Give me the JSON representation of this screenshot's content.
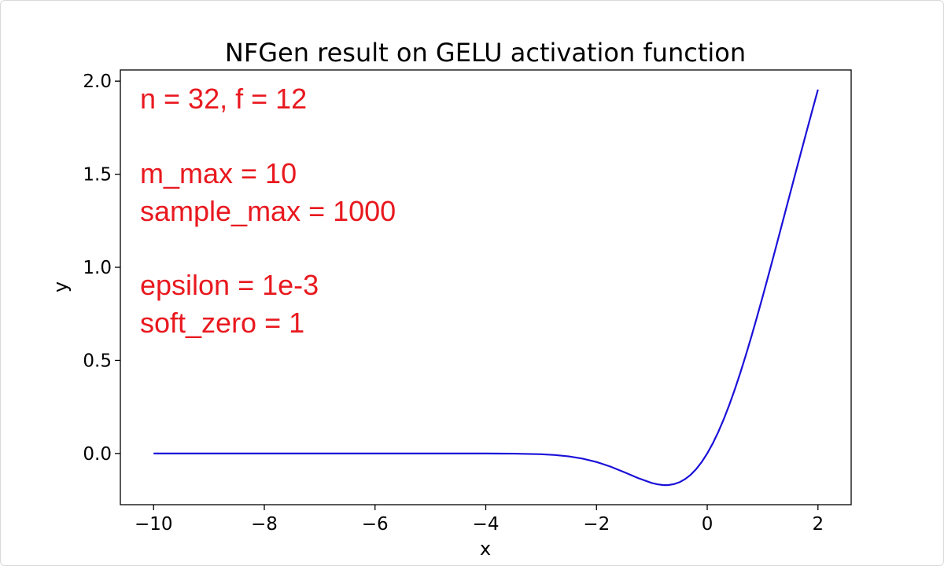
{
  "colors": {
    "line": "#1a10d8",
    "annotation": "#e8191f",
    "axis": "#000000",
    "background": "#ffffff"
  },
  "chart_data": {
    "type": "line",
    "title": "NFGen result on GELU activation function",
    "xlabel": "x",
    "ylabel": "y",
    "xlim": [
      -10.6,
      2.6
    ],
    "ylim": [
      -0.275,
      2.06
    ],
    "grid": false,
    "legend": "none",
    "x_ticks": [
      -10,
      -8,
      -6,
      -4,
      -2,
      0,
      2
    ],
    "x_tick_labels": [
      "−10",
      "−8",
      "−6",
      "−4",
      "−2",
      "0",
      "2"
    ],
    "y_ticks": [
      0.0,
      0.5,
      1.0,
      1.5,
      2.0
    ],
    "y_tick_labels": [
      "0.0",
      "0.5",
      "1.0",
      "1.5",
      "2.0"
    ],
    "series": [
      {
        "function": "GELU",
        "x": [
          -10,
          -9,
          -8,
          -7,
          -6,
          -5,
          -4,
          -3.5,
          -3,
          -2.75,
          -2.5,
          -2.25,
          -2,
          -1.75,
          -1.5,
          -1.25,
          -1,
          -0.9,
          -0.8,
          -0.75,
          -0.7,
          -0.6,
          -0.5,
          -0.4,
          -0.3,
          -0.2,
          -0.1,
          0,
          0.1,
          0.2,
          0.3,
          0.4,
          0.5,
          0.6,
          0.7,
          0.8,
          0.9,
          1.0,
          1.1,
          1.2,
          1.3,
          1.4,
          1.5,
          1.6,
          1.7,
          1.8,
          1.9,
          2.0
        ],
        "y": [
          0.0,
          0.0,
          0.0,
          0.0,
          0.0,
          0.0,
          -0.0001,
          -0.0008,
          -0.004,
          -0.0082,
          -0.0155,
          -0.0276,
          -0.0455,
          -0.0702,
          -0.1002,
          -0.132,
          -0.1587,
          -0.1655,
          -0.1695,
          -0.17,
          -0.1694,
          -0.1646,
          -0.1543,
          -0.1378,
          -0.1148,
          -0.0841,
          -0.046,
          0.0,
          0.054,
          0.1159,
          0.1854,
          0.2622,
          0.3457,
          0.4354,
          0.5306,
          0.6305,
          0.7343,
          0.8413,
          0.9508,
          1.0619,
          1.1742,
          1.287,
          1.3998,
          1.5124,
          1.6242,
          1.7354,
          1.8454,
          1.9545
        ]
      }
    ],
    "annotations": [
      "n = 32, f = 12",
      "m_max = 10",
      "sample_max = 1000",
      "epsilon = 1e-3",
      "soft_zero = 1"
    ]
  }
}
